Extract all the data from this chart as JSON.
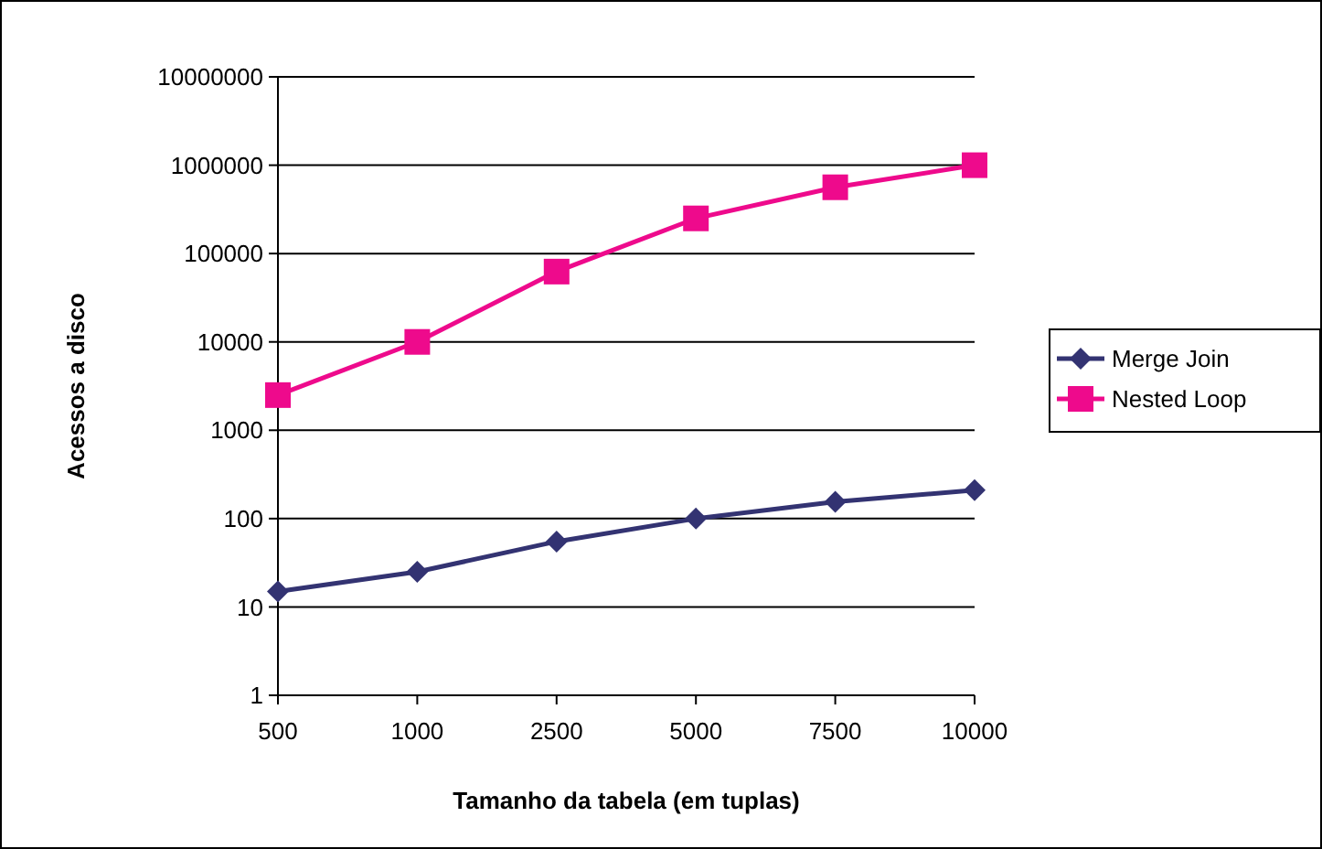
{
  "chart_data": {
    "type": "line",
    "xlabel": "Tamanho da tabela (em tuplas)",
    "ylabel": "Acessos a disco",
    "categories": [
      "500",
      "1000",
      "2500",
      "5000",
      "7500",
      "10000"
    ],
    "series": [
      {
        "name": "Merge Join",
        "color": "#333372",
        "marker": "diamond",
        "values": [
          15,
          25,
          55,
          100,
          155,
          210
        ]
      },
      {
        "name": "Nested Loop",
        "color": "#ee0a8c",
        "marker": "square",
        "values": [
          2500,
          10000,
          62500,
          250000,
          562500,
          1000000
        ]
      }
    ],
    "log": true,
    "ylim": [
      1,
      10000000
    ],
    "yticks": [
      1,
      10,
      100,
      1000,
      10000,
      100000,
      1000000,
      10000000
    ],
    "grid": "y",
    "legend": "right",
    "line_style": "solid"
  }
}
